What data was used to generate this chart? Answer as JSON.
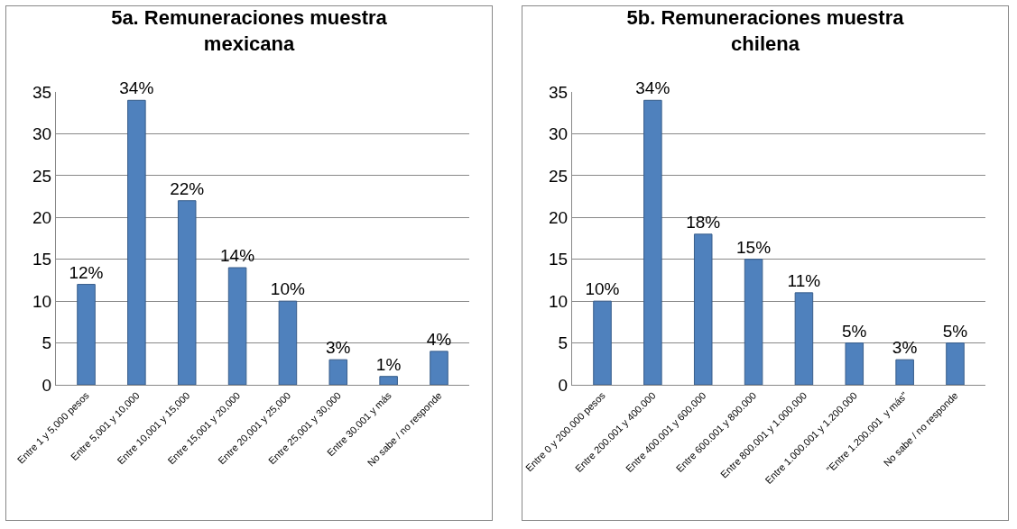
{
  "chart_data": [
    {
      "type": "bar",
      "title": "5a. Remuneraciones muestra mexicana",
      "categories": [
        "Entre 1 y 5,000 pesos",
        "Entre 5,001 y 10,000",
        "Entre 10,001 y 15,000",
        "Entre 15,001 y 20,000",
        "Entre 20,001 y 25,000",
        "Entre 25,001 y 30,000",
        "Entre 30.001 y más",
        "No sabe / no responde"
      ],
      "values": [
        12,
        34,
        22,
        14,
        10,
        3,
        1,
        4
      ],
      "value_labels": [
        "12%",
        "34%",
        "22%",
        "14%",
        "10%",
        "3%",
        "1%",
        "4%"
      ],
      "color": "#4f81bd",
      "ylim": [
        0,
        35
      ],
      "yticks": [
        0,
        5,
        10,
        15,
        20,
        25,
        30,
        35
      ],
      "grid": "y",
      "legend": false
    },
    {
      "type": "bar",
      "title": "5b. Remuneraciones muestra chilena",
      "categories": [
        "Entre 0 y 200.000 pesos",
        "Entre 200.001 y 400.000",
        "Entre 400.001 y 600.000",
        "Entre 600.001 y 800.000",
        "Entre 800.001 y 1.000.000",
        "Entre 1.000.001 y 1.200.000",
        "\"Entre 1.200.001  y más\"",
        "No sabe / no responde"
      ],
      "values": [
        10,
        34,
        18,
        15,
        11,
        5,
        3,
        5
      ],
      "value_labels": [
        "10%",
        "34%",
        "18%",
        "15%",
        "11%",
        "5%",
        "3%",
        "5%"
      ],
      "color": "#4f81bd",
      "ylim": [
        0,
        35
      ],
      "yticks": [
        0,
        5,
        10,
        15,
        20,
        25,
        30,
        35
      ],
      "grid": "y",
      "legend": false
    }
  ]
}
